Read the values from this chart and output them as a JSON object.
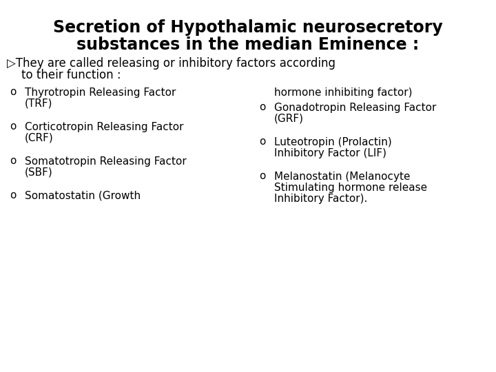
{
  "background_color": "#ffffff",
  "title_line1": "Secretion of Hypothalamic neurosecretory",
  "title_line2": "substances in the median Eminence :",
  "title_fontsize": 17,
  "title_fontweight": "bold",
  "bullet_fontsize": 12,
  "item_fontsize": 11,
  "arrow_line1": "▷They are called releasing or inhibitory factors according",
  "arrow_line2": "    to their function :",
  "left_col": [
    {
      "circle": true,
      "lines": [
        "Thyrotropin Releasing Factor",
        "(TRF)"
      ]
    },
    {
      "circle": true,
      "lines": [
        "Corticotropin Releasing Factor",
        "(CRF)"
      ]
    },
    {
      "circle": true,
      "lines": [
        "Somatotropin Releasing Factor",
        "(SBF)"
      ]
    },
    {
      "circle": true,
      "lines": [
        "Somatostatin (Growth"
      ]
    }
  ],
  "right_col": [
    {
      "circle": false,
      "lines": [
        "hormone inhibiting factor)"
      ]
    },
    {
      "circle": true,
      "lines": [
        "Gonadotropin Releasing Factor",
        "(GRF)"
      ]
    },
    {
      "circle": true,
      "lines": [
        "Luteotropin (Prolactin)",
        "Inhibitory Factor (LIF)"
      ]
    },
    {
      "circle": true,
      "lines": [
        "Melanostatin (Melanocyte",
        "Stimulating hormone release",
        "Inhibitory Factor)."
      ]
    }
  ]
}
